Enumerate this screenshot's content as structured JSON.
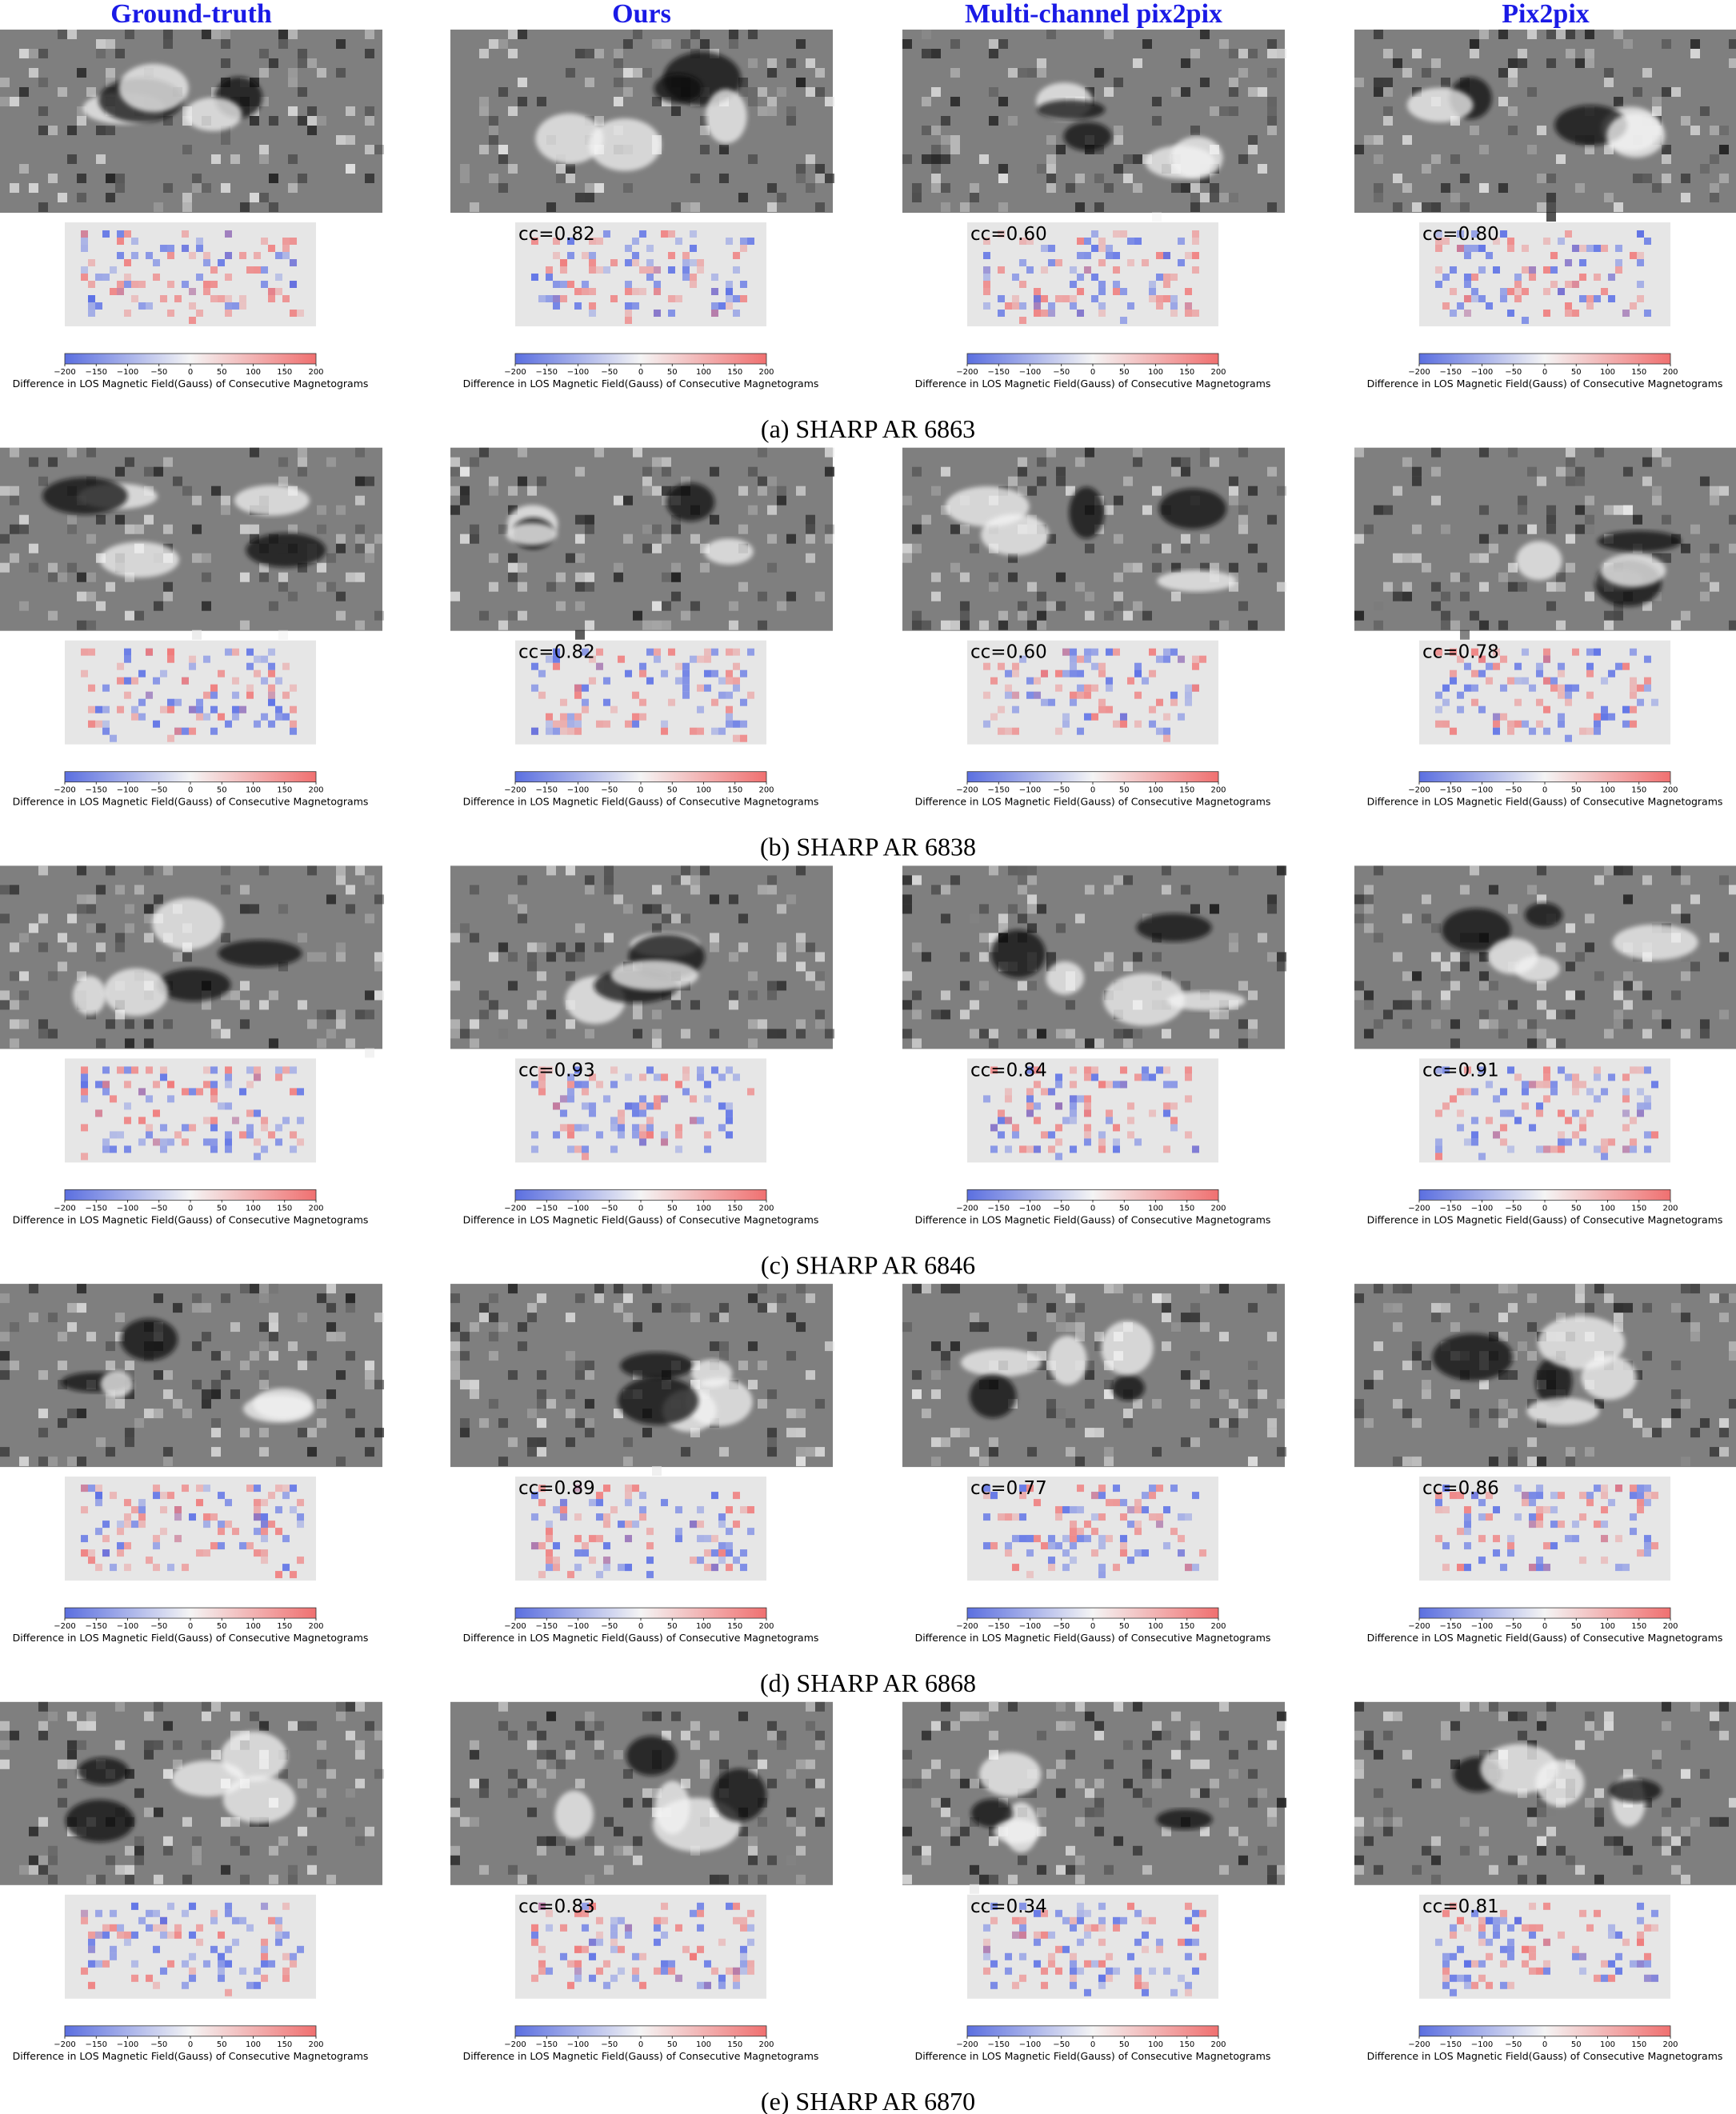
{
  "headers": [
    "Ground-truth",
    "Ours",
    "Multi-channel pix2pix",
    "Pix2pix"
  ],
  "colorbar": {
    "ticks": [
      "−200",
      "−150",
      "−100",
      "−50",
      "0",
      "50",
      "100",
      "150",
      "200"
    ],
    "label": "Difference in LOS Magnetic Field(Gauss) of Consecutive Magnetograms"
  },
  "rows": [
    {
      "caption": "(a) SHARP AR 6863",
      "cc": [
        "cc=0.82",
        "cc=0.60",
        "cc=0.80"
      ]
    },
    {
      "caption": "(b) SHARP AR 6838",
      "cc": [
        "cc=0.82",
        "cc=0.60",
        "cc=0.78"
      ]
    },
    {
      "caption": "(c) SHARP AR 6846",
      "cc": [
        "cc=0.93",
        "cc=0.84",
        "cc=0.91"
      ]
    },
    {
      "caption": "(d) SHARP AR 6868",
      "cc": [
        "cc=0.89",
        "cc=0.77",
        "cc=0.86"
      ]
    },
    {
      "caption": "(e) SHARP AR 6870",
      "cc": [
        "cc=0.83",
        "cc=0.34",
        "cc=0.81"
      ]
    }
  ]
}
